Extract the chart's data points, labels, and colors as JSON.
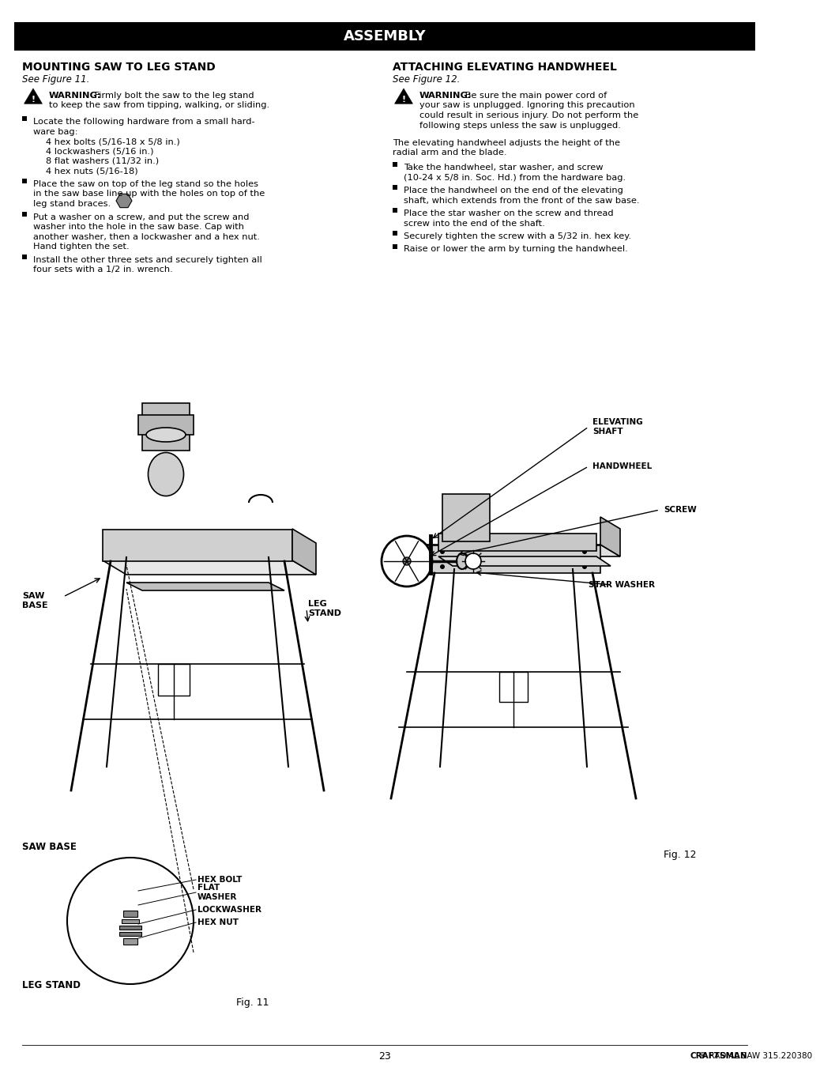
{
  "title": "ASSEMBLY",
  "title_bg": "#000000",
  "title_color": "#ffffff",
  "page_bg": "#ffffff",
  "text_color": "#000000",
  "left_heading": "MOUNTING SAW TO LEG STAND",
  "left_subheading": "See Figure 11.",
  "right_heading": "ATTACHING ELEVATING HANDWHEEL",
  "right_subheading": "See Figure 12.",
  "left_warning_bold": "WARNING:",
  "left_warning_rest": " Firmly bolt the saw to the leg stand\nto keep the saw from tipping, walking, or sliding.",
  "right_warning_bold": "WARNING:",
  "right_warning_rest": " Be sure the main power cord of\nyour saw is unplugged. Ignoring this precaution\ncould result in serious injury. Do not perform the\nfollowing steps unless the saw is unplugged.",
  "left_bullet1_lines": [
    "Locate the following hardware from a small hard-",
    "ware bag:"
  ],
  "left_sub_items": [
    "4 hex bolts (5/16-18 x 5/8 in.)",
    "4 lockwashers (5/16 in.)",
    "8 flat washers (11/32 in.)",
    "4 hex nuts (5/16-18)"
  ],
  "left_bullet2_lines": [
    "Place the saw on top of the leg stand so the holes",
    "in the saw base line up with the holes on top of the",
    "leg stand braces."
  ],
  "left_bullet3_lines": [
    "Put a washer on a screw, and put the screw and",
    "washer into the hole in the saw base. Cap with",
    "another washer, then a lockwasher and a hex nut.",
    "Hand tighten the set."
  ],
  "left_bullet4_lines": [
    "Install the other three sets and securely tighten all",
    "four sets with a 1/2 in. wrench."
  ],
  "right_para_lines": [
    "The elevating handwheel adjusts the height of the",
    "radial arm and the blade."
  ],
  "right_bullet1_lines": [
    "Take the handwheel, star washer, and screw",
    "(10-24 x 5/8 in. Soc. Hd.) from the hardware bag."
  ],
  "right_bullet2_lines": [
    "Place the handwheel on the end of the elevating",
    "shaft, which extends from the front of the saw base."
  ],
  "right_bullet3_lines": [
    "Place the star washer on the screw and thread",
    "screw into the end of the shaft."
  ],
  "right_bullet4_lines": [
    "Securely tighten the screw with a 5/32 in. hex key."
  ],
  "right_bullet5_lines": [
    "Raise or lower the arm by turning the handwheel."
  ],
  "fig11_caption": "Fig. 11",
  "fig12_caption": "Fig. 12",
  "page_number": "23",
  "footer_brand": "CRAFTSMAN",
  "footer_rest": "® RADIAL SAW 315.220380"
}
